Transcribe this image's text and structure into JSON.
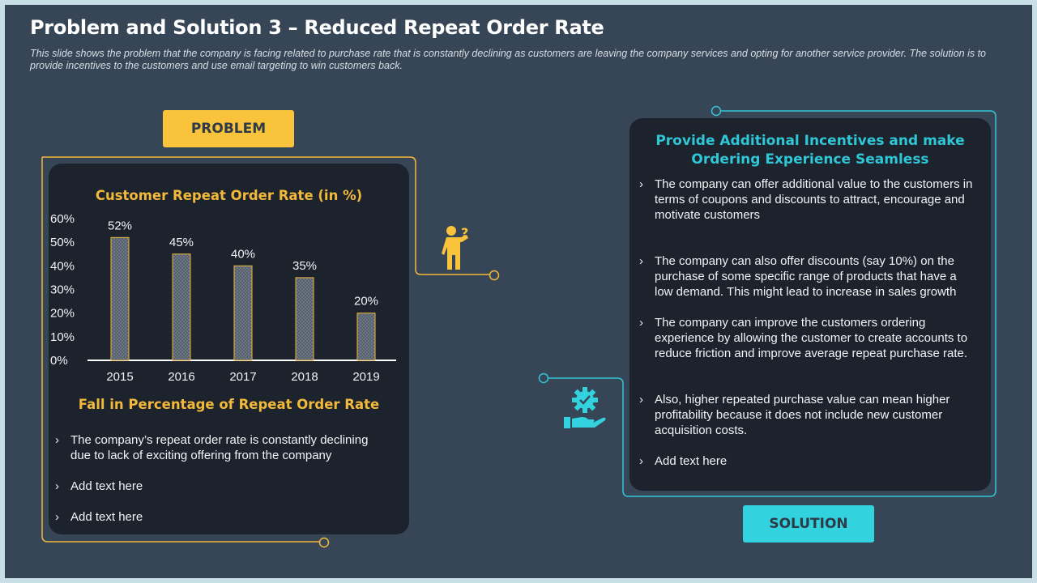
{
  "title": "Problem and Solution 3 – Reduced Repeat Order Rate",
  "subtitle": "This slide shows the problem that the company is facing related to purchase rate that is constantly declining as customers are leaving the company services and opting for another service provider.  The solution is to provide incentives to the customers and use email targeting to win customers back.",
  "problem": {
    "tag": "PROBLEM",
    "section_title": "Fall in Percentage of Repeat Order Rate",
    "bullets": [
      "The company’s repeat order rate is constantly declining due to lack of exciting offering from the company",
      "Add text here",
      "Add text here"
    ]
  },
  "solution": {
    "tag": "SOLUTION",
    "title": "Provide Additional Incentives and make Ordering Experience Seamless",
    "bullets": [
      "The company can offer additional value to the customers in terms of coupons and discounts to attract, encourage and motivate customers",
      "The company can also offer discounts (say 10%) on the purchase of some specific range of products that have a low demand. This might lead to increase in sales growth",
      "The company can improve the customers ordering experience by allowing the customer to create accounts to reduce friction and improve average repeat purchase rate.",
      "Also, higher repeated purchase value can mean higher profitability because it does not include new customer acquisition costs.",
      "Add text here"
    ]
  },
  "icons": {
    "problem": "person-question-icon",
    "solution": "hand-gear-icon"
  },
  "colors": {
    "background": "#374656",
    "panel": "#1c232d",
    "accent_yellow": "#f9c43b",
    "accent_cyan": "#33d2df"
  },
  "chart_data": {
    "type": "bar",
    "title": "Customer Repeat Order Rate (in %)",
    "categories": [
      "2015",
      "2016",
      "2017",
      "2018",
      "2019"
    ],
    "values": [
      52,
      45,
      40,
      35,
      20
    ],
    "data_labels": [
      "52%",
      "45%",
      "40%",
      "35%",
      "20%"
    ],
    "yticks": [
      "0%",
      "10%",
      "20%",
      "30%",
      "40%",
      "50%",
      "60%"
    ],
    "ylim": [
      0,
      60
    ],
    "grid": false,
    "legend": "none",
    "bar_color": "#56616d",
    "bar_border": "#f2b93b"
  }
}
